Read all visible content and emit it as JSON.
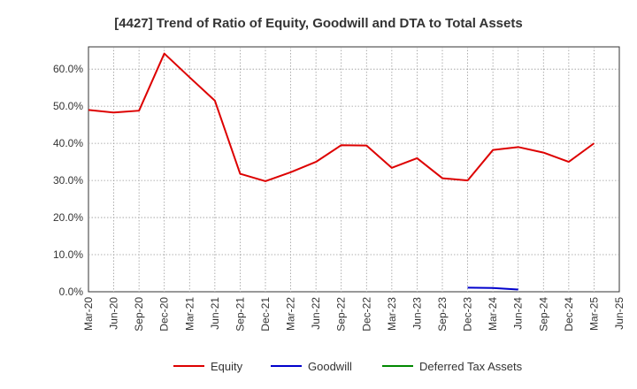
{
  "chart_data": {
    "type": "line",
    "title": "[4427]  Trend of Ratio of Equity, Goodwill and DTA to Total Assets",
    "xlabel": "",
    "ylabel": "",
    "x": [
      "Mar-20",
      "Jun-20",
      "Sep-20",
      "Dec-20",
      "Mar-21",
      "Jun-21",
      "Sep-21",
      "Dec-21",
      "Mar-22",
      "Jun-22",
      "Sep-22",
      "Dec-22",
      "Mar-23",
      "Jun-23",
      "Sep-23",
      "Dec-23",
      "Mar-24",
      "Jun-24",
      "Sep-24",
      "Dec-24",
      "Mar-25",
      "Jun-25"
    ],
    "ylim": [
      0,
      66
    ],
    "yticks": [
      0,
      10,
      20,
      30,
      40,
      50,
      60
    ],
    "ytick_labels": [
      "0.0%",
      "10.0%",
      "20.0%",
      "30.0%",
      "40.0%",
      "50.0%",
      "60.0%"
    ],
    "grid": true,
    "legend_position": "bottom",
    "series": [
      {
        "name": "Equity",
        "color": "#dd0000",
        "values": [
          49.0,
          48.3,
          48.8,
          64.2,
          57.8,
          51.5,
          31.8,
          29.8,
          32.2,
          35.0,
          39.5,
          39.4,
          33.4,
          36.0,
          30.6,
          30.0,
          38.2,
          39.0,
          37.5,
          35.0,
          40.0,
          null
        ]
      },
      {
        "name": "Goodwill",
        "color": "#0000cc",
        "values": [
          null,
          null,
          null,
          null,
          null,
          null,
          null,
          null,
          null,
          null,
          null,
          null,
          null,
          null,
          null,
          1.1,
          1.0,
          0.6,
          null,
          null,
          null,
          null
        ]
      },
      {
        "name": "Deferred Tax Assets",
        "color": "#008800",
        "values": [
          null,
          null,
          null,
          null,
          null,
          null,
          null,
          null,
          null,
          null,
          null,
          null,
          null,
          null,
          null,
          null,
          null,
          null,
          null,
          null,
          null,
          null
        ]
      }
    ]
  }
}
